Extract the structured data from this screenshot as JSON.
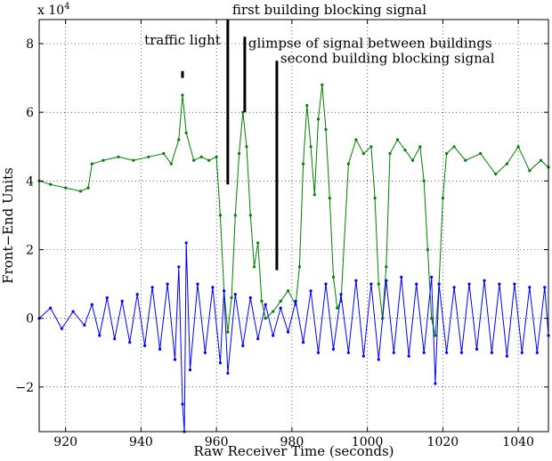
{
  "chart_data": {
    "type": "line",
    "title": "",
    "xlabel": "Raw Receiver Time (seconds)",
    "ylabel": "Front−End Units",
    "y_exponent": "x 10",
    "y_exponent_power": "4",
    "xlim": [
      913,
      1048
    ],
    "ylim": [
      -3.3,
      8.7
    ],
    "x_ticks": [
      920,
      940,
      960,
      980,
      1000,
      1020,
      1040
    ],
    "y_ticks": [
      -2,
      0,
      2,
      4,
      6,
      8
    ],
    "grid": true,
    "series": [
      {
        "color": "#008000",
        "marker": "dot",
        "points": [
          [
            913,
            4.0
          ],
          [
            916,
            3.9
          ],
          [
            920,
            3.8
          ],
          [
            924,
            3.7
          ],
          [
            926,
            3.8
          ],
          [
            927,
            4.5
          ],
          [
            930,
            4.6
          ],
          [
            934,
            4.7
          ],
          [
            938,
            4.6
          ],
          [
            942,
            4.7
          ],
          [
            946,
            4.8
          ],
          [
            948,
            4.5
          ],
          [
            950,
            5.2
          ],
          [
            951,
            6.5
          ],
          [
            952,
            5.4
          ],
          [
            954,
            4.6
          ],
          [
            956,
            4.7
          ],
          [
            958,
            4.6
          ],
          [
            960,
            4.7
          ],
          [
            961,
            3.0
          ],
          [
            962,
            0.8
          ],
          [
            963,
            -0.4
          ],
          [
            964,
            0.6
          ],
          [
            965,
            3.0
          ],
          [
            966,
            4.8
          ],
          [
            967,
            6.0
          ],
          [
            968,
            5.0
          ],
          [
            969,
            3.0
          ],
          [
            970,
            1.5
          ],
          [
            971,
            2.2
          ],
          [
            972,
            0.5
          ],
          [
            973,
            0.0
          ],
          [
            975,
            0.2
          ],
          [
            977,
            0.5
          ],
          [
            979,
            0.8
          ],
          [
            981,
            0.4
          ],
          [
            982,
            1.5
          ],
          [
            983,
            4.5
          ],
          [
            984,
            6.2
          ],
          [
            985,
            5.0
          ],
          [
            986,
            3.6
          ],
          [
            987,
            5.8
          ],
          [
            988,
            6.8
          ],
          [
            989,
            5.5
          ],
          [
            990,
            3.5
          ],
          [
            991,
            1.2
          ],
          [
            992,
            0.3
          ],
          [
            993,
            0.5
          ],
          [
            995,
            4.5
          ],
          [
            997,
            5.2
          ],
          [
            999,
            4.8
          ],
          [
            1001,
            5.0
          ],
          [
            1002,
            3.5
          ],
          [
            1003,
            1.0
          ],
          [
            1004,
            0.0
          ],
          [
            1005,
            1.5
          ],
          [
            1006,
            4.8
          ],
          [
            1008,
            5.2
          ],
          [
            1010,
            4.9
          ],
          [
            1012,
            4.6
          ],
          [
            1014,
            5.0
          ],
          [
            1015,
            4.0
          ],
          [
            1016,
            2.0
          ],
          [
            1017,
            0.0
          ],
          [
            1018,
            -0.5
          ],
          [
            1019,
            1.0
          ],
          [
            1020,
            3.5
          ],
          [
            1021,
            4.8
          ],
          [
            1023,
            5.0
          ],
          [
            1026,
            4.6
          ],
          [
            1030,
            4.8
          ],
          [
            1034,
            4.2
          ],
          [
            1037,
            4.5
          ],
          [
            1040,
            5.0
          ],
          [
            1043,
            4.3
          ],
          [
            1046,
            4.6
          ],
          [
            1048,
            4.4
          ]
        ]
      },
      {
        "color": "#0000ff",
        "marker": "dot",
        "points": [
          [
            913,
            0.0
          ],
          [
            916,
            0.3
          ],
          [
            919,
            -0.3
          ],
          [
            922,
            0.2
          ],
          [
            925,
            -0.2
          ],
          [
            927,
            0.4
          ],
          [
            929,
            -0.5
          ],
          [
            931,
            0.6
          ],
          [
            933,
            -0.6
          ],
          [
            935,
            0.5
          ],
          [
            937,
            -0.7
          ],
          [
            939,
            0.7
          ],
          [
            941,
            -0.8
          ],
          [
            943,
            0.9
          ],
          [
            945,
            -0.9
          ],
          [
            947,
            1.0
          ],
          [
            949,
            -1.2
          ],
          [
            950,
            1.5
          ],
          [
            951,
            -2.5
          ],
          [
            951.5,
            -3.3
          ],
          [
            952,
            2.2
          ],
          [
            953,
            -1.5
          ],
          [
            955,
            1.0
          ],
          [
            957,
            -1.0
          ],
          [
            959,
            0.9
          ],
          [
            961,
            -1.3
          ],
          [
            962,
            0.8
          ],
          [
            963,
            -1.6
          ],
          [
            965,
            0.7
          ],
          [
            967,
            -0.8
          ],
          [
            969,
            0.6
          ],
          [
            971,
            -0.6
          ],
          [
            973,
            0.4
          ],
          [
            975,
            -0.5
          ],
          [
            977,
            0.3
          ],
          [
            979,
            -0.4
          ],
          [
            981,
            0.5
          ],
          [
            983,
            -0.7
          ],
          [
            985,
            0.8
          ],
          [
            987,
            -1.0
          ],
          [
            989,
            1.0
          ],
          [
            991,
            -0.9
          ],
          [
            993,
            0.7
          ],
          [
            995,
            -1.0
          ],
          [
            997,
            1.1
          ],
          [
            999,
            -1.1
          ],
          [
            1001,
            1.0
          ],
          [
            1003,
            -1.2
          ],
          [
            1005,
            1.1
          ],
          [
            1007,
            -1.0
          ],
          [
            1009,
            1.2
          ],
          [
            1011,
            -1.1
          ],
          [
            1013,
            1.0
          ],
          [
            1015,
            -1.0
          ],
          [
            1017,
            1.2
          ],
          [
            1018,
            -1.9
          ],
          [
            1019,
            1.0
          ],
          [
            1021,
            -1.0
          ],
          [
            1023,
            0.9
          ],
          [
            1025,
            -1.0
          ],
          [
            1027,
            1.0
          ],
          [
            1029,
            -0.9
          ],
          [
            1031,
            1.1
          ],
          [
            1033,
            -1.0
          ],
          [
            1035,
            1.0
          ],
          [
            1037,
            -1.1
          ],
          [
            1039,
            1.0
          ],
          [
            1041,
            -1.0
          ],
          [
            1043,
            0.9
          ],
          [
            1045,
            -1.0
          ],
          [
            1047,
            0.9
          ],
          [
            1048,
            -0.5
          ]
        ]
      }
    ],
    "annotations": [
      {
        "text": "traffic light",
        "x": 951,
        "y_top": 7.2,
        "y_bottom": 7.0
      },
      {
        "text": "first building blocking signal",
        "x": 963,
        "y_top": 8.7,
        "y_bottom": 3.9
      },
      {
        "text": "glimpse of signal between buildings",
        "x": 967.5,
        "y_top": 8.2,
        "y_bottom": 6.0
      },
      {
        "text": "second building blocking signal",
        "x": 976,
        "y_top": 7.5,
        "y_bottom": 1.4
      }
    ]
  }
}
